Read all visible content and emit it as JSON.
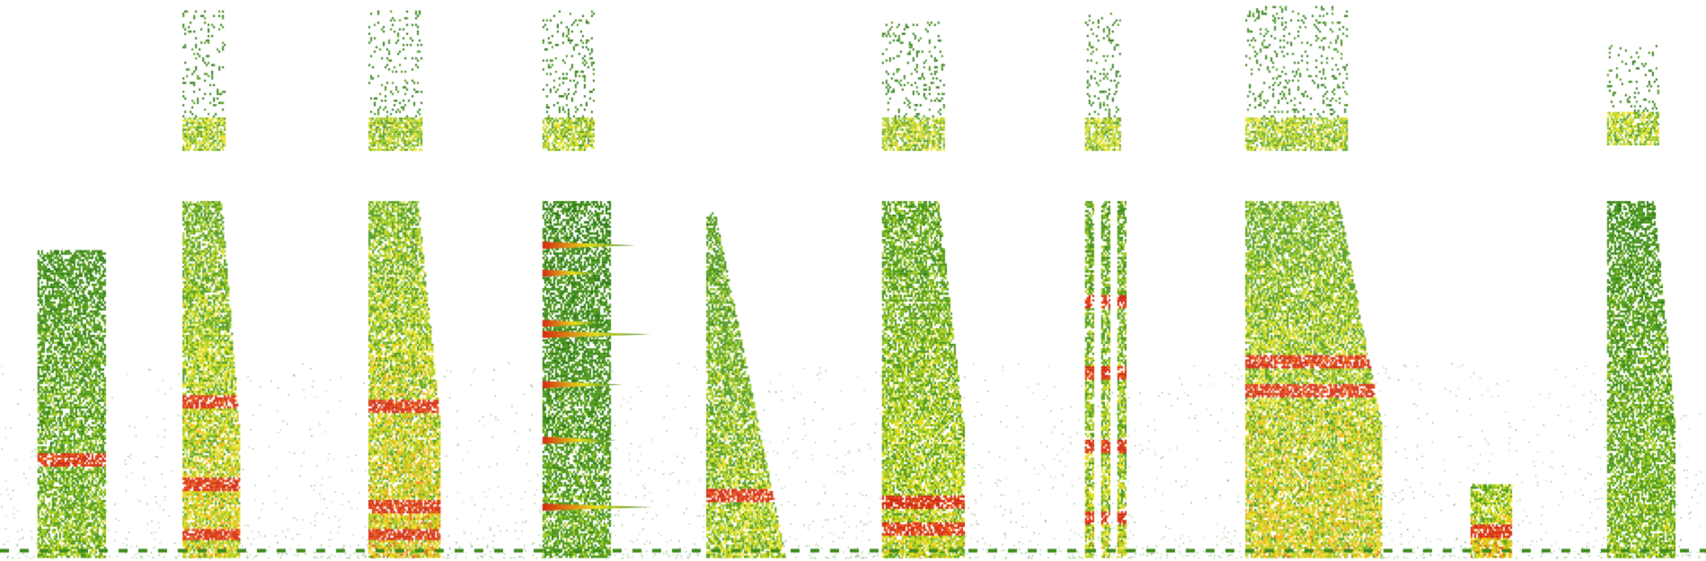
{
  "chart_data": {
    "type": "heatmap",
    "title": "",
    "xlabel": "",
    "ylabel": "",
    "colormap": [
      "#2e7d17",
      "#4f9a1c",
      "#9cc91e",
      "#e6e01a",
      "#f5b40f",
      "#e85a12",
      "#d42a10"
    ],
    "background": "#ffffff",
    "segments": [
      {
        "name": "",
        "kind": "noise",
        "x_range": [
          0.022,
          0.062
        ],
        "low_band_top": 0.55,
        "mid_band": [
          0.55,
          0.55
        ],
        "high_band": null,
        "intensity": 0.45,
        "hot_bands": [
          0.175
        ]
      },
      {
        "name": "",
        "kind": "broadband",
        "x_range": [
          0.107,
          0.14
        ],
        "low_band_top": 0.64,
        "high_band": [
          0.73,
          0.98
        ],
        "intensity": 0.7,
        "hot_bands": [
          0.04,
          0.13,
          0.28
        ]
      },
      {
        "name": "",
        "kind": "broadband",
        "x_range": [
          0.216,
          0.258
        ],
        "low_band_top": 0.64,
        "high_band": [
          0.73,
          0.98
        ],
        "intensity": 0.75,
        "hot_bands": [
          0.04,
          0.09,
          0.27
        ]
      },
      {
        "name": "",
        "kind": "tonal",
        "x_range": [
          0.318,
          0.358
        ],
        "low_band_top": 0.64,
        "high_band": [
          0.73,
          0.98
        ],
        "intensity": 0.35,
        "harmonics": [
          0.09,
          0.21,
          0.31,
          0.4,
          0.42,
          0.51,
          0.56
        ]
      },
      {
        "name": "",
        "kind": "triangular",
        "x_range": [
          0.414,
          0.46
        ],
        "low_band_top": 0.62,
        "high_band": null,
        "intensity": 0.55,
        "hot_bands": [
          0.11
        ]
      },
      {
        "name": "",
        "kind": "broadband",
        "x_range": [
          0.517,
          0.565
        ],
        "low_band_top": 0.64,
        "high_band": [
          0.73,
          0.96
        ],
        "intensity": 0.6,
        "hot_bands": [
          0.05,
          0.1
        ]
      },
      {
        "name": "",
        "kind": "striped",
        "x_range": [
          0.636,
          0.664
        ],
        "low_band_top": 0.64,
        "high_band": [
          0.73,
          0.98
        ],
        "intensity": 0.6,
        "hot_bands": [
          0.07,
          0.2,
          0.33,
          0.46
        ]
      },
      {
        "name": "",
        "kind": "broadband",
        "x_range": [
          0.73,
          0.81
        ],
        "low_band_top": 0.64,
        "high_band": [
          0.73,
          0.99
        ],
        "intensity": 0.7,
        "hot_bands": [
          0.3,
          0.35
        ]
      },
      {
        "name": "",
        "kind": "short-tone",
        "x_range": [
          0.862,
          0.886
        ],
        "low_band_top": 0.13,
        "high_band": null,
        "intensity": 0.8,
        "hot_bands": [
          0.045
        ]
      },
      {
        "name": "",
        "kind": "broadband",
        "x_range": [
          0.942,
          0.982
        ],
        "low_band_top": 0.64,
        "high_band": [
          0.74,
          0.92
        ],
        "intensity": 0.45,
        "hot_bands": []
      }
    ],
    "baseline": {
      "y": 0.012,
      "color": "#3d8a1a"
    }
  }
}
